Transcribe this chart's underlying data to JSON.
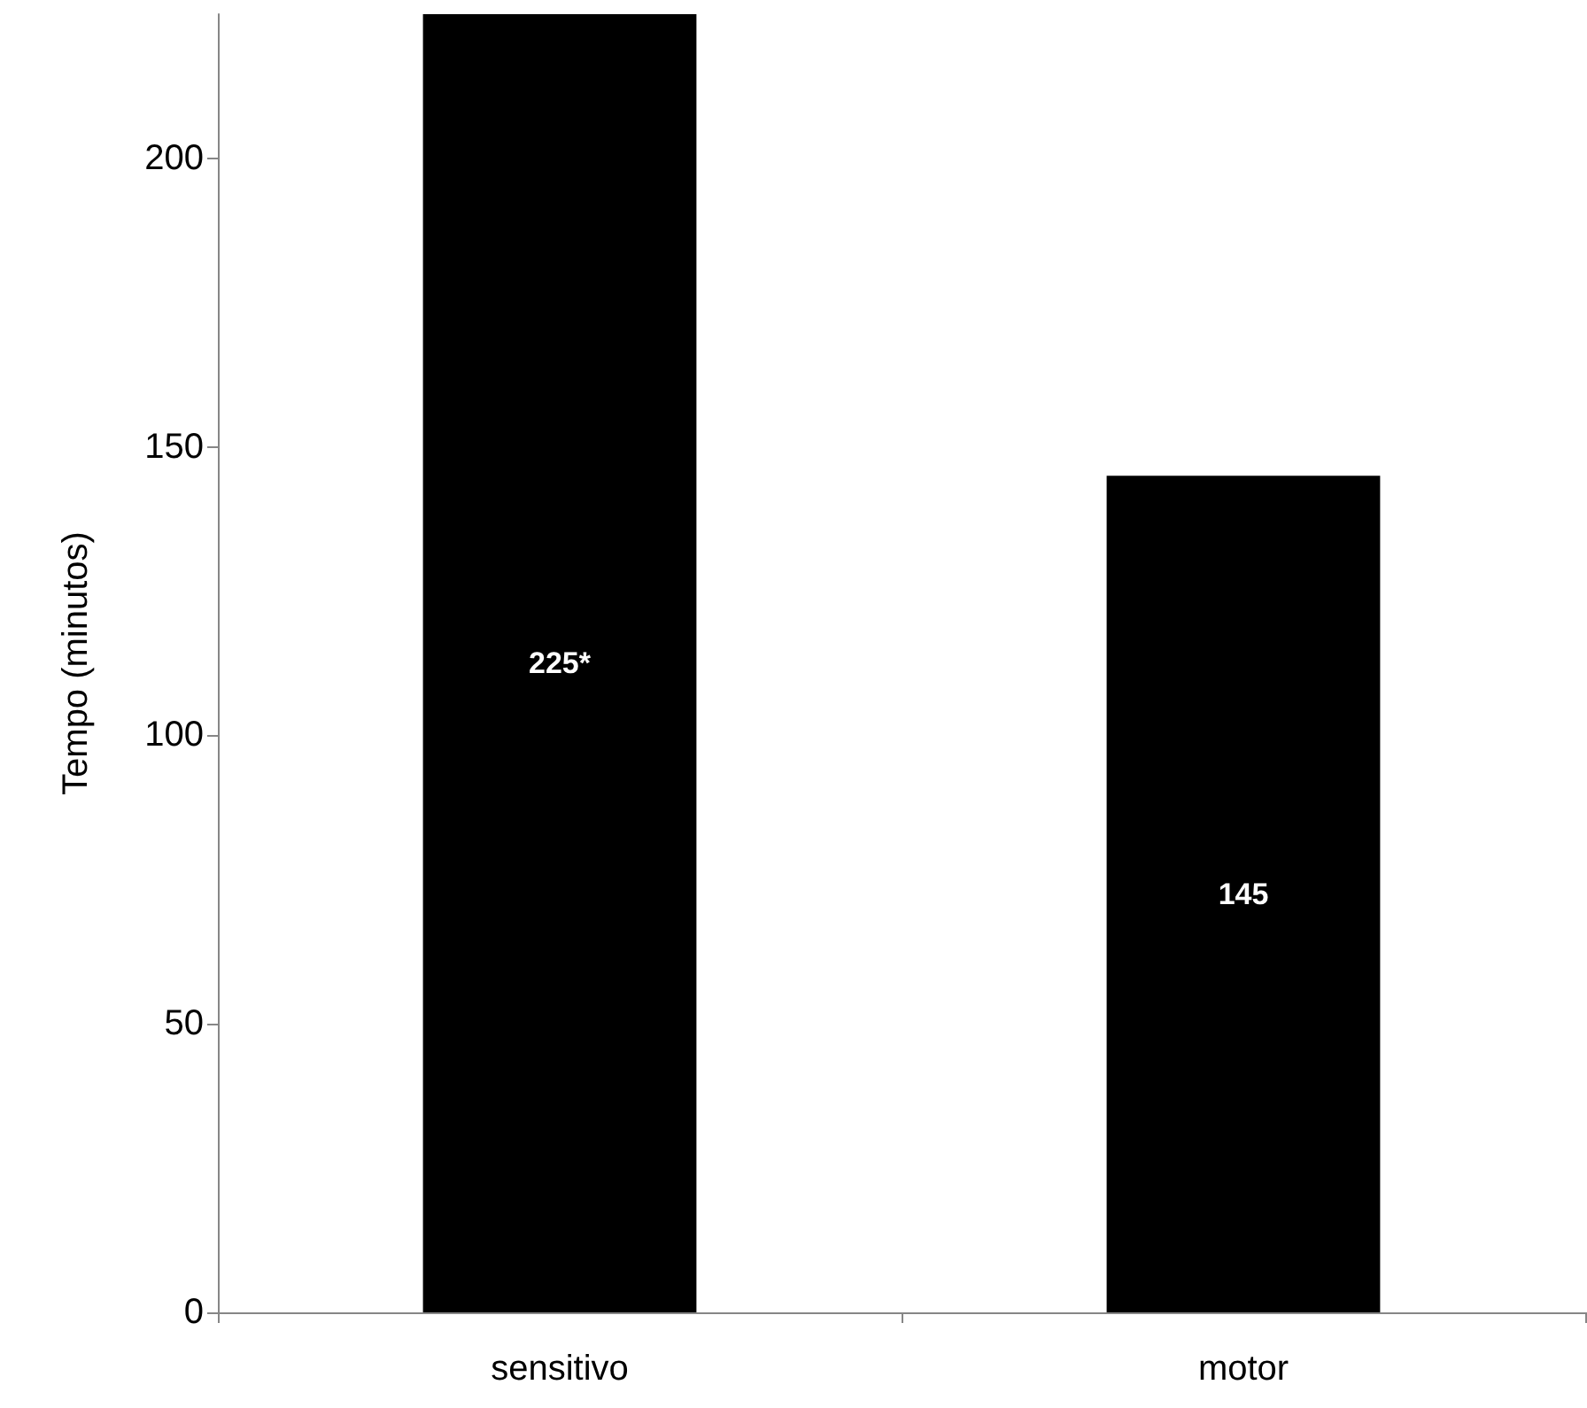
{
  "chart_data": {
    "type": "bar",
    "ylabel": "Tempo (minutos)",
    "categories": [
      "sensitivo",
      "motor"
    ],
    "values": [
      225,
      145
    ],
    "value_labels": [
      "225*",
      "145"
    ],
    "color": "#000000",
    "ylim": [
      0,
      225
    ],
    "yticks": [
      0,
      50,
      100,
      150,
      200
    ],
    "grid": false
  }
}
